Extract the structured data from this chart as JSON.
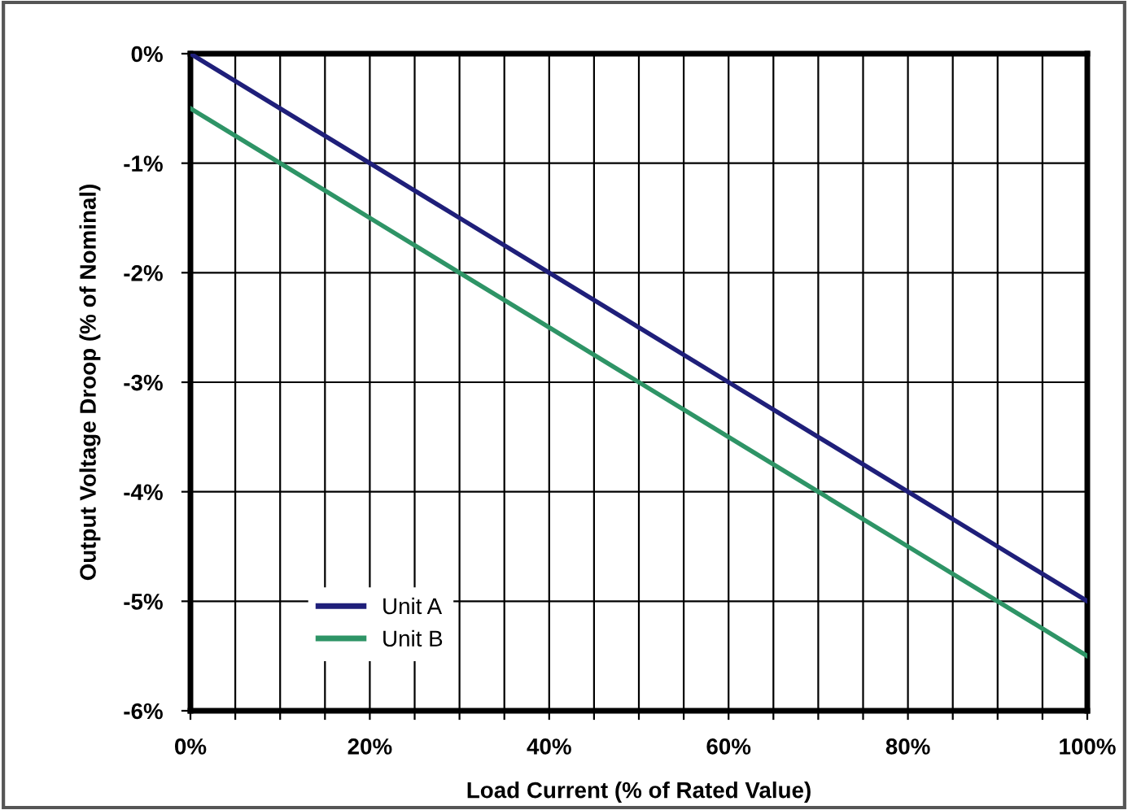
{
  "chart_data": {
    "type": "line",
    "xlabel": "Load Current (% of Rated Value)",
    "ylabel": "Output Voltage Droop (% of Nominal)",
    "x": [
      0,
      10,
      20,
      25,
      30,
      40,
      50,
      60,
      70,
      80,
      90,
      100
    ],
    "series": [
      {
        "name": "Unit A",
        "color": "#1f1f7a",
        "values": [
          0,
          -0.5,
          -1.0,
          -1.25,
          -1.5,
          -2.0,
          -2.5,
          -3.0,
          -3.5,
          -4.0,
          -4.5,
          -5.0
        ]
      },
      {
        "name": "Unit B",
        "color": "#2e9466",
        "values": [
          -0.5,
          -1.0,
          -1.5,
          -1.75,
          -2.0,
          -2.5,
          -3.0,
          -3.5,
          -4.0,
          -4.5,
          -5.0,
          -5.5
        ]
      }
    ],
    "xlim": [
      0,
      100
    ],
    "ylim": [
      -6,
      0
    ],
    "xticks": [
      {
        "value": 0,
        "label": "0%"
      },
      {
        "value": 5,
        "label": null
      },
      {
        "value": 10,
        "label": null
      },
      {
        "value": 15,
        "label": null
      },
      {
        "value": 20,
        "label": "20%"
      },
      {
        "value": 25,
        "label": null
      },
      {
        "value": 30,
        "label": null
      },
      {
        "value": 35,
        "label": null
      },
      {
        "value": 40,
        "label": "40%"
      },
      {
        "value": 45,
        "label": null
      },
      {
        "value": 50,
        "label": null
      },
      {
        "value": 55,
        "label": null
      },
      {
        "value": 60,
        "label": "60%"
      },
      {
        "value": 65,
        "label": null
      },
      {
        "value": 70,
        "label": null
      },
      {
        "value": 75,
        "label": null
      },
      {
        "value": 80,
        "label": "80%"
      },
      {
        "value": 85,
        "label": null
      },
      {
        "value": 90,
        "label": null
      },
      {
        "value": 95,
        "label": null
      },
      {
        "value": 100,
        "label": "100%"
      }
    ],
    "yticks": [
      {
        "value": -6,
        "label": "-6%"
      },
      {
        "value": -5,
        "label": "-5%"
      },
      {
        "value": -4,
        "label": "-4%"
      },
      {
        "value": -3,
        "label": "-3%"
      },
      {
        "value": -2,
        "label": "-2%"
      },
      {
        "value": -1,
        "label": "-1%"
      },
      {
        "value": 0,
        "label": "0%"
      }
    ],
    "grid": true,
    "legend": "bottom left",
    "marker": "none",
    "line_style": "solid"
  }
}
